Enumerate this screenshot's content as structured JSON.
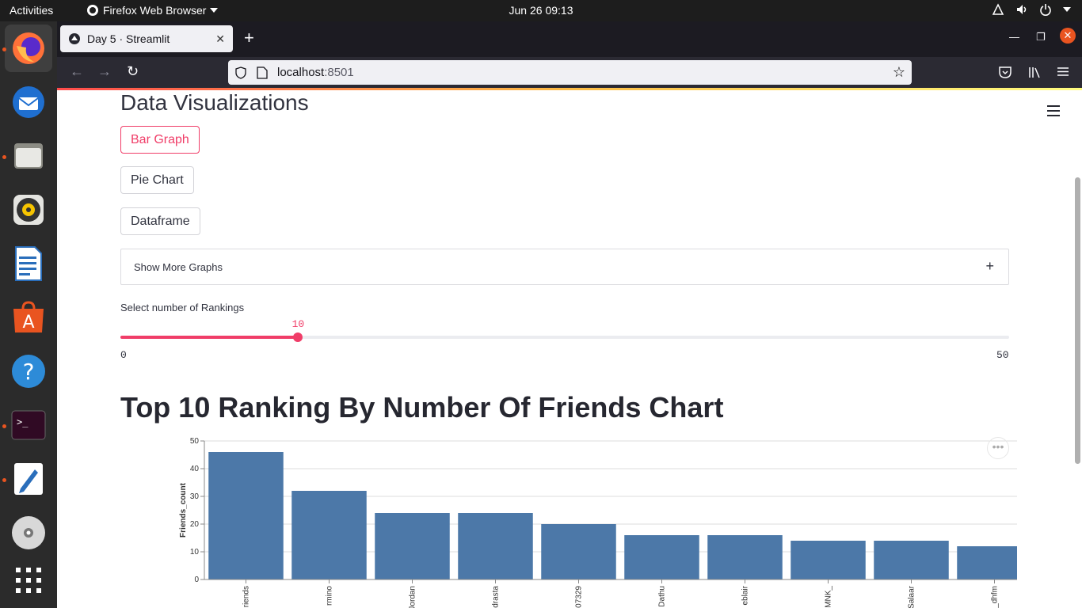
{
  "topbar": {
    "activities": "Activities",
    "app_name": "Firefox Web Browser",
    "clock": "Jun 26  09:13"
  },
  "dock": {
    "items": [
      "firefox-icon",
      "thunderbird-icon",
      "files-icon",
      "rhythmbox-icon",
      "libreoffice-writer-icon",
      "app-center-icon",
      "help-icon",
      "terminal-icon",
      "text-editor-icon",
      "disc-icon",
      "show-apps-icon"
    ]
  },
  "browser": {
    "tab_title": "Day 5 · Streamlit",
    "url_host": "localhost",
    "url_port": ":8501"
  },
  "page": {
    "title": "Data Visualizations",
    "buttons": {
      "bar_graph": "Bar Graph",
      "pie_chart": "Pie Chart",
      "dataframe": "Dataframe"
    },
    "expander_label": "Show More Graphs",
    "slider": {
      "label": "Select number of Rankings",
      "min": 0,
      "max": 50,
      "value": 10,
      "min_label": "0",
      "max_label": "50",
      "value_label": "10"
    },
    "chart_heading": "Top 10 Ranking By Number Of Friends Chart"
  },
  "colors": {
    "accent": "#f03d68",
    "bar": "#4c78a8",
    "topbar": "#1d1d1d",
    "dock": "#2b2b2b"
  },
  "chart_data": {
    "type": "bar",
    "ylabel": "Friends_count",
    "ylim": [
      0,
      50
    ],
    "yticks": [
      0,
      10,
      20,
      30,
      40,
      50
    ],
    "categories": [
      "riends",
      "rmino",
      "Jordan",
      "drasta",
      "07329",
      "Dathu",
      "eblair",
      "MNK_",
      "Salaar",
      "_dhfm"
    ],
    "values": [
      46,
      32,
      24,
      24,
      20,
      16,
      16,
      14,
      14,
      12
    ],
    "grid": true
  }
}
